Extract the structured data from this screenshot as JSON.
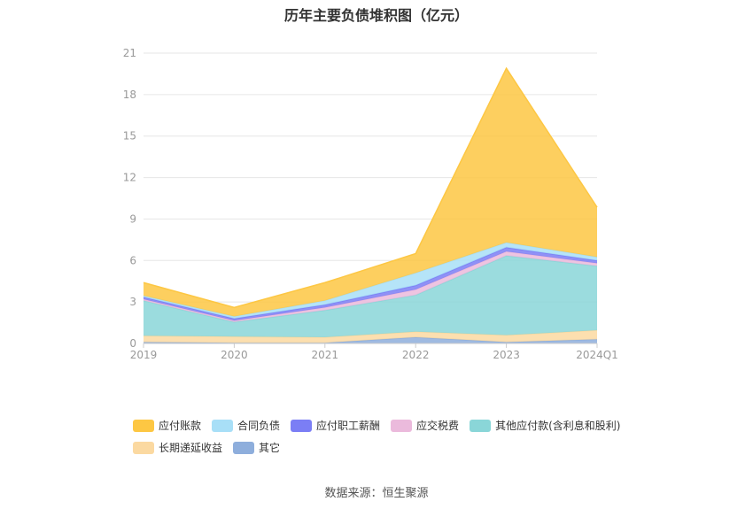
{
  "chart_data": {
    "type": "area",
    "stacked": true,
    "title": "历年主要负债堆积图（亿元）",
    "categories": [
      "2019",
      "2020",
      "2021",
      "2022",
      "2023",
      "2024Q1"
    ],
    "ylim": [
      0,
      21
    ],
    "yticks": [
      0,
      3,
      6,
      9,
      12,
      15,
      18,
      21
    ],
    "grid": true,
    "legend_position": "bottom",
    "series": [
      {
        "name": "其它",
        "color": "#8eaedc",
        "values": [
          0.1,
          0.05,
          0.05,
          0.45,
          0.1,
          0.3
        ]
      },
      {
        "name": "长期递延收益",
        "color": "#fbd9a1",
        "values": [
          0.45,
          0.45,
          0.4,
          0.4,
          0.5,
          0.65
        ]
      },
      {
        "name": "其他应付款(含利息和股利)",
        "color": "#8ad6d8",
        "values": [
          2.55,
          1.05,
          1.95,
          2.65,
          5.75,
          4.65
        ]
      },
      {
        "name": "应交税费",
        "color": "#ebbadc",
        "values": [
          0.1,
          0.1,
          0.2,
          0.4,
          0.3,
          0.2
        ]
      },
      {
        "name": "应付职工薪酬",
        "color": "#7b7ef5",
        "values": [
          0.15,
          0.15,
          0.2,
          0.3,
          0.3,
          0.2
        ]
      },
      {
        "name": "合同负债",
        "color": "#a8dff7",
        "values": [
          0.1,
          0.15,
          0.3,
          0.9,
          0.35,
          0.25
        ]
      },
      {
        "name": "应付账款",
        "color": "#fdc743",
        "values": [
          0.95,
          0.65,
          1.3,
          1.4,
          12.6,
          3.6
        ]
      }
    ]
  },
  "legend": {
    "items": [
      "应付账款",
      "合同负债",
      "应付职工薪酬",
      "应交税费",
      "其他应付款(含利息和股利)",
      "长期递延收益",
      "其它"
    ]
  },
  "source_text": "数据来源：恒生聚源"
}
